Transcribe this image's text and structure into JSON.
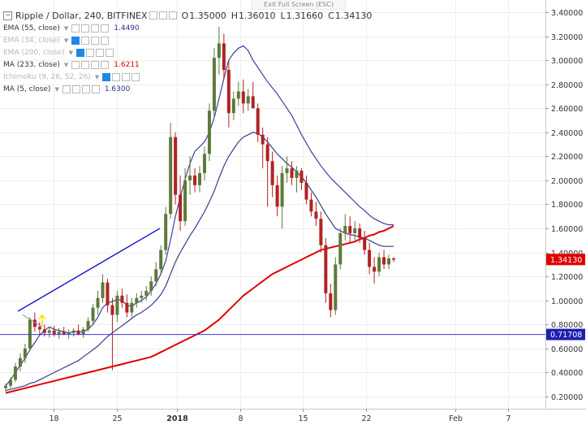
{
  "banner": "Exit Full Screen (ESC)",
  "title": "Ripple / Dollar, 240, BITFINEX",
  "ohlc": {
    "o_label": "O",
    "o": "1.35000",
    "h_label": "H",
    "h": "1.36010",
    "l_label": "L",
    "l": "1.31660",
    "c_label": "C",
    "c": "1.34130"
  },
  "indicators": [
    {
      "name": "EMA (55, close)",
      "value": "1.4490",
      "color": "#2c2f96",
      "dim": false
    },
    {
      "name": "EMA (34, close)",
      "value": "",
      "color": "#b8b8b8",
      "dim": true
    },
    {
      "name": "EMA (200, close)",
      "value": "",
      "color": "#b8b8b8",
      "dim": true
    },
    {
      "name": "MA (233, close)",
      "value": "1.6211",
      "color": "#d40000",
      "dim": false
    },
    {
      "name": "Ichimoku (9, 26, 52, 26)",
      "value": "",
      "color": "#b8b8b8",
      "dim": true
    },
    {
      "name": "MA (5, close)",
      "value": "1.6300",
      "color": "#2c2f96",
      "dim": false
    }
  ],
  "colors": {
    "bull": "#5d7a3a",
    "bear": "#b22222",
    "ma233": "#e00000",
    "ema55": "#3a3a8c",
    "ma5": "#3f3fa0",
    "trendline": "#1010d0",
    "hline": "#3a3ad8",
    "arrow": "#f5e200",
    "price_tag": "#e00000",
    "hline_tag": "#1f1fb0"
  },
  "chart_data": {
    "type": "candlestick",
    "title": "Ripple / Dollar, 240, BITFINEX",
    "y_ticks": [
      "3.40000",
      "3.20000",
      "3.00000",
      "2.80000",
      "2.60000",
      "2.40000",
      "2.20000",
      "2.00000",
      "1.80000",
      "1.60000",
      "1.40000",
      "1.20000",
      "1.00000",
      "0.80000",
      "0.60000",
      "0.40000",
      "0.20000"
    ],
    "x_ticks": [
      "18",
      "25",
      "2018",
      "8",
      "15",
      "22",
      "Feb",
      "7"
    ],
    "ylim": [
      0.1,
      3.45
    ],
    "last_price": "1.34130",
    "hline_value": "0.71708",
    "candles": [
      [
        0.27,
        0.31,
        0.24,
        0.29
      ],
      [
        0.29,
        0.36,
        0.27,
        0.34
      ],
      [
        0.34,
        0.48,
        0.32,
        0.45
      ],
      [
        0.45,
        0.56,
        0.41,
        0.52
      ],
      [
        0.52,
        0.64,
        0.48,
        0.6
      ],
      [
        0.6,
        0.86,
        0.58,
        0.84
      ],
      [
        0.84,
        0.9,
        0.74,
        0.78
      ],
      [
        0.78,
        0.82,
        0.72,
        0.76
      ],
      [
        0.76,
        0.8,
        0.7,
        0.73
      ],
      [
        0.73,
        0.78,
        0.69,
        0.75
      ],
      [
        0.75,
        0.79,
        0.7,
        0.72
      ],
      [
        0.72,
        0.77,
        0.68,
        0.74
      ],
      [
        0.74,
        0.78,
        0.71,
        0.72
      ],
      [
        0.72,
        0.76,
        0.68,
        0.73
      ],
      [
        0.73,
        0.77,
        0.7,
        0.75
      ],
      [
        0.75,
        0.8,
        0.71,
        0.72
      ],
      [
        0.72,
        0.78,
        0.69,
        0.76
      ],
      [
        0.76,
        0.86,
        0.74,
        0.83
      ],
      [
        0.83,
        0.97,
        0.8,
        0.94
      ],
      [
        0.94,
        1.08,
        0.88,
        1.02
      ],
      [
        1.02,
        1.22,
        0.98,
        1.15
      ],
      [
        1.15,
        1.18,
        0.9,
        0.96
      ],
      [
        0.96,
        1.02,
        0.42,
        0.88
      ],
      [
        0.88,
        1.08,
        0.82,
        1.04
      ],
      [
        1.04,
        1.1,
        0.94,
        0.98
      ],
      [
        0.98,
        1.05,
        0.86,
        0.9
      ],
      [
        0.9,
        1.02,
        0.86,
        0.98
      ],
      [
        0.98,
        1.06,
        0.94,
        1.02
      ],
      [
        1.02,
        1.08,
        0.98,
        1.04
      ],
      [
        1.04,
        1.12,
        1.0,
        1.08
      ],
      [
        1.08,
        1.2,
        1.04,
        1.16
      ],
      [
        1.16,
        1.32,
        1.12,
        1.26
      ],
      [
        1.26,
        1.46,
        1.22,
        1.42
      ],
      [
        1.42,
        1.78,
        1.38,
        1.72
      ],
      [
        1.72,
        2.48,
        1.68,
        2.36
      ],
      [
        2.36,
        2.4,
        1.8,
        1.88
      ],
      [
        1.88,
        2.04,
        1.58,
        1.66
      ],
      [
        1.66,
        2.1,
        1.62,
        2.0
      ],
      [
        2.0,
        2.2,
        1.88,
        2.04
      ],
      [
        2.04,
        2.1,
        1.9,
        1.96
      ],
      [
        1.96,
        2.12,
        1.9,
        2.06
      ],
      [
        2.06,
        2.28,
        2.0,
        2.22
      ],
      [
        2.22,
        2.64,
        2.16,
        2.58
      ],
      [
        2.58,
        3.1,
        2.52,
        3.02
      ],
      [
        3.02,
        3.28,
        2.88,
        3.14
      ],
      [
        3.14,
        3.22,
        2.84,
        2.92
      ],
      [
        2.92,
        3.0,
        2.44,
        2.56
      ],
      [
        2.56,
        2.74,
        2.5,
        2.68
      ],
      [
        2.68,
        2.82,
        2.62,
        2.74
      ],
      [
        2.74,
        2.84,
        2.56,
        2.64
      ],
      [
        2.64,
        2.76,
        2.58,
        2.7
      ],
      [
        2.7,
        2.82,
        2.62,
        2.6
      ],
      [
        2.6,
        2.64,
        2.32,
        2.38
      ],
      [
        2.38,
        2.44,
        2.1,
        2.3
      ],
      [
        2.3,
        2.36,
        1.78,
        2.16
      ],
      [
        2.16,
        2.24,
        1.86,
        1.96
      ],
      [
        1.96,
        2.04,
        1.7,
        1.78
      ],
      [
        1.78,
        2.12,
        1.6,
        2.06
      ],
      [
        2.06,
        2.2,
        1.98,
        2.1
      ],
      [
        2.1,
        2.16,
        1.96,
        2.02
      ],
      [
        2.02,
        2.12,
        1.9,
        2.08
      ],
      [
        2.08,
        2.1,
        1.92,
        1.98
      ],
      [
        1.98,
        2.04,
        1.8,
        1.84
      ],
      [
        1.84,
        1.9,
        1.7,
        1.74
      ],
      [
        1.74,
        1.82,
        1.62,
        1.68
      ],
      [
        1.68,
        1.74,
        1.4,
        1.46
      ],
      [
        1.46,
        1.52,
        0.98,
        1.06
      ],
      [
        1.06,
        1.14,
        0.86,
        0.92
      ],
      [
        0.92,
        1.36,
        0.88,
        1.3
      ],
      [
        1.3,
        1.6,
        1.26,
        1.56
      ],
      [
        1.56,
        1.72,
        1.5,
        1.62
      ],
      [
        1.62,
        1.7,
        1.48,
        1.56
      ],
      [
        1.56,
        1.66,
        1.5,
        1.6
      ],
      [
        1.6,
        1.64,
        1.48,
        1.52
      ],
      [
        1.52,
        1.58,
        1.38,
        1.42
      ],
      [
        1.42,
        1.48,
        1.22,
        1.28
      ],
      [
        1.28,
        1.36,
        1.14,
        1.24
      ],
      [
        1.24,
        1.4,
        1.2,
        1.36
      ],
      [
        1.36,
        1.42,
        1.26,
        1.3
      ],
      [
        1.3,
        1.38,
        1.26,
        1.35
      ],
      [
        1.35,
        1.36,
        1.32,
        1.34
      ]
    ],
    "series": [
      {
        "name": "MA (233, close)",
        "values": [
          0.23,
          0.24,
          0.25,
          0.26,
          0.27,
          0.28,
          0.29,
          0.3,
          0.31,
          0.32,
          0.33,
          0.34,
          0.35,
          0.36,
          0.37,
          0.38,
          0.39,
          0.4,
          0.41,
          0.42,
          0.43,
          0.44,
          0.45,
          0.46,
          0.47,
          0.48,
          0.49,
          0.5,
          0.51,
          0.52,
          0.53,
          0.55,
          0.57,
          0.59,
          0.61,
          0.63,
          0.65,
          0.67,
          0.69,
          0.71,
          0.73,
          0.75,
          0.78,
          0.81,
          0.84,
          0.88,
          0.92,
          0.96,
          1.0,
          1.04,
          1.07,
          1.1,
          1.13,
          1.16,
          1.19,
          1.22,
          1.24,
          1.26,
          1.28,
          1.3,
          1.32,
          1.34,
          1.36,
          1.38,
          1.4,
          1.42,
          1.43,
          1.44,
          1.45,
          1.46,
          1.47,
          1.48,
          1.49,
          1.51,
          1.52,
          1.54,
          1.55,
          1.57,
          1.58,
          1.6,
          1.62
        ]
      },
      {
        "name": "EMA (55, close)",
        "values": [
          0.25,
          0.26,
          0.27,
          0.28,
          0.29,
          0.31,
          0.32,
          0.34,
          0.36,
          0.38,
          0.4,
          0.42,
          0.44,
          0.46,
          0.48,
          0.5,
          0.53,
          0.56,
          0.59,
          0.62,
          0.66,
          0.7,
          0.73,
          0.76,
          0.79,
          0.82,
          0.85,
          0.88,
          0.9,
          0.93,
          0.96,
          1.0,
          1.05,
          1.12,
          1.22,
          1.32,
          1.4,
          1.47,
          1.54,
          1.6,
          1.67,
          1.74,
          1.82,
          1.91,
          2.02,
          2.12,
          2.2,
          2.26,
          2.32,
          2.36,
          2.38,
          2.4,
          2.39,
          2.36,
          2.32,
          2.27,
          2.22,
          2.18,
          2.14,
          2.11,
          2.07,
          2.03,
          1.98,
          1.92,
          1.86,
          1.79,
          1.72,
          1.66,
          1.6,
          1.58,
          1.56,
          1.55,
          1.54,
          1.53,
          1.52,
          1.5,
          1.48,
          1.46,
          1.45,
          1.45,
          1.45
        ]
      },
      {
        "name": "MA (5, close)",
        "values": [
          0.29,
          0.34,
          0.4,
          0.46,
          0.52,
          0.59,
          0.65,
          0.71,
          0.75,
          0.78,
          0.76,
          0.75,
          0.74,
          0.73,
          0.74,
          0.74,
          0.74,
          0.76,
          0.8,
          0.86,
          0.94,
          0.98,
          0.99,
          1.01,
          1.0,
          0.96,
          0.95,
          0.98,
          1.0,
          1.03,
          1.08,
          1.14,
          1.22,
          1.33,
          1.5,
          1.7,
          1.86,
          2.01,
          2.14,
          2.24,
          2.28,
          2.32,
          2.4,
          2.52,
          2.68,
          2.85,
          3.0,
          3.06,
          3.1,
          3.12,
          3.08,
          3.0,
          2.94,
          2.88,
          2.82,
          2.77,
          2.72,
          2.66,
          2.6,
          2.54,
          2.46,
          2.38,
          2.31,
          2.24,
          2.18,
          2.12,
          2.07,
          2.02,
          1.98,
          1.94,
          1.9,
          1.86,
          1.82,
          1.78,
          1.75,
          1.71,
          1.68,
          1.66,
          1.64,
          1.63,
          1.63
        ]
      }
    ]
  }
}
